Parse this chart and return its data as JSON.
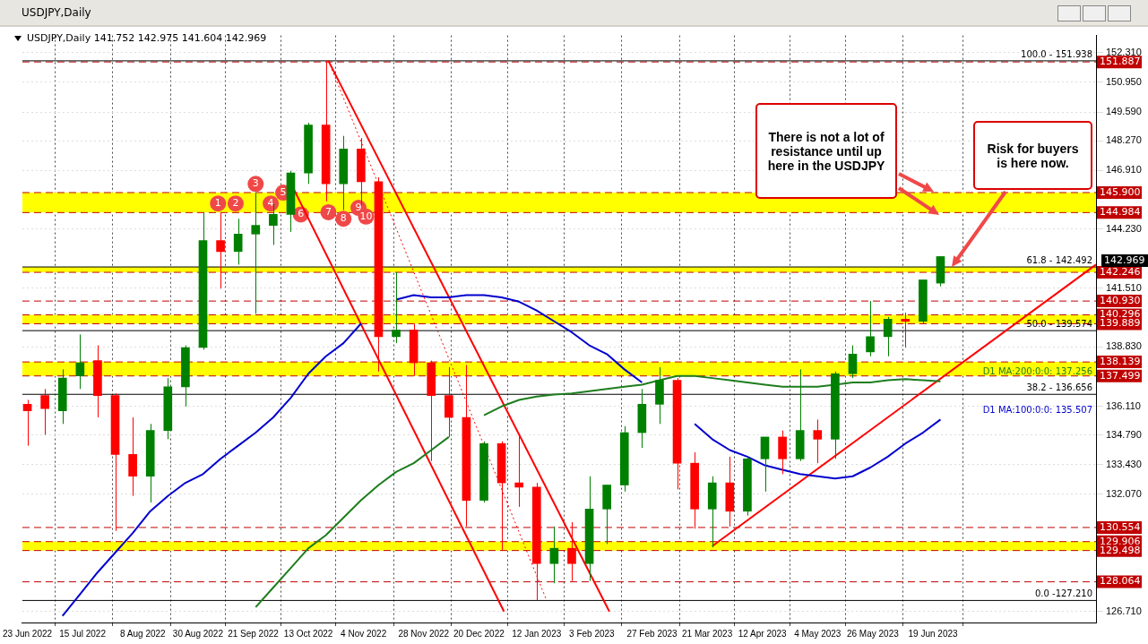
{
  "chart_data": {
    "type": "candlestick",
    "title": "USDJPY,Daily  141.752 142.975 141.604 142.969",
    "subtitle": "USDJPY,Daily",
    "x": [
      "2022-06-23",
      "2022-06-30",
      "2022-07-07",
      "2022-07-14",
      "2022-07-21",
      "2022-07-28",
      "2022-08-04",
      "2022-08-11",
      "2022-08-18",
      "2022-08-25",
      "2022-09-01",
      "2022-09-08",
      "2022-09-15",
      "2022-09-22",
      "2022-09-29",
      "2022-10-06",
      "2022-10-13",
      "2022-10-20",
      "2022-10-27",
      "2022-11-03",
      "2022-11-10",
      "2022-11-17",
      "2022-11-24",
      "2022-12-01",
      "2022-12-08",
      "2022-12-15",
      "2022-12-22",
      "2022-12-29",
      "2023-01-05",
      "2023-01-12",
      "2023-01-19",
      "2023-01-26",
      "2023-02-02",
      "2023-02-09",
      "2023-02-16",
      "2023-02-23",
      "2023-03-02",
      "2023-03-09",
      "2023-03-16",
      "2023-03-23",
      "2023-03-30",
      "2023-04-06",
      "2023-04-13",
      "2023-04-20",
      "2023-04-27",
      "2023-05-04",
      "2023-05-11",
      "2023-05-18",
      "2023-05-25",
      "2023-06-01",
      "2023-06-08",
      "2023-06-15",
      "2023-06-22"
    ],
    "ohlc": [
      [
        136.2,
        136.4,
        134.3,
        135.9
      ],
      [
        136.6,
        136.9,
        134.8,
        136.0
      ],
      [
        135.9,
        137.8,
        135.3,
        137.4
      ],
      [
        137.5,
        139.4,
        136.9,
        138.1
      ],
      [
        138.2,
        138.9,
        135.6,
        136.6
      ],
      [
        136.6,
        136.7,
        130.4,
        133.9
      ],
      [
        133.9,
        135.6,
        132.0,
        132.9
      ],
      [
        132.9,
        135.3,
        131.7,
        135.0
      ],
      [
        135.0,
        137.4,
        134.6,
        137.0
      ],
      [
        137.0,
        138.9,
        136.1,
        138.8
      ],
      [
        138.8,
        144.99,
        138.7,
        143.7
      ],
      [
        143.7,
        144.96,
        141.5,
        143.2
      ],
      [
        143.2,
        144.7,
        142.6,
        144.0
      ],
      [
        144.0,
        145.9,
        140.35,
        144.4
      ],
      [
        144.4,
        145.4,
        143.5,
        144.9
      ],
      [
        144.9,
        146.9,
        144.1,
        146.8
      ],
      [
        146.8,
        149.1,
        146.3,
        149.0
      ],
      [
        149.0,
        151.94,
        145.5,
        146.3
      ],
      [
        146.3,
        148.5,
        145.1,
        147.9
      ],
      [
        147.9,
        148.4,
        145.3,
        146.4
      ],
      [
        146.4,
        146.6,
        137.7,
        139.3
      ],
      [
        139.3,
        142.25,
        139.0,
        139.6
      ],
      [
        139.6,
        139.9,
        137.5,
        138.1
      ],
      [
        138.1,
        138.2,
        133.6,
        136.6
      ],
      [
        136.6,
        137.9,
        134.7,
        135.6
      ],
      [
        135.6,
        138.0,
        130.6,
        131.8
      ],
      [
        131.8,
        134.5,
        131.7,
        134.4
      ],
      [
        134.4,
        134.5,
        129.5,
        132.6
      ],
      [
        132.6,
        134.8,
        131.5,
        132.4
      ],
      [
        132.4,
        132.6,
        127.21,
        128.9
      ],
      [
        128.9,
        130.6,
        128.0,
        129.6
      ],
      [
        129.6,
        130.8,
        128.1,
        128.9
      ],
      [
        128.9,
        132.9,
        128.1,
        131.4
      ],
      [
        131.4,
        132.5,
        129.8,
        132.5
      ],
      [
        132.5,
        135.2,
        132.2,
        134.9
      ],
      [
        134.9,
        136.9,
        134.2,
        136.2
      ],
      [
        136.2,
        137.9,
        135.3,
        137.3
      ],
      [
        137.3,
        137.4,
        132.3,
        133.5
      ],
      [
        133.5,
        134.0,
        130.5,
        131.4
      ],
      [
        131.4,
        132.9,
        129.64,
        132.6
      ],
      [
        132.6,
        133.8,
        130.6,
        131.3
      ],
      [
        131.3,
        133.8,
        131.1,
        133.7
      ],
      [
        133.7,
        134.7,
        132.2,
        134.7
      ],
      [
        134.7,
        135.0,
        133.0,
        133.7
      ],
      [
        133.7,
        137.8,
        133.6,
        135.0
      ],
      [
        135.0,
        135.5,
        133.5,
        134.6
      ],
      [
        134.6,
        137.7,
        133.7,
        137.6
      ],
      [
        137.6,
        138.9,
        137.4,
        138.5
      ],
      [
        138.6,
        140.93,
        138.4,
        139.3
      ],
      [
        139.3,
        140.2,
        138.4,
        140.1
      ],
      [
        140.1,
        140.4,
        138.8,
        140.0
      ],
      [
        140.0,
        141.9,
        139.9,
        141.9
      ],
      [
        141.752,
        142.975,
        141.604,
        142.969
      ]
    ],
    "colors": [
      "#ff0000",
      "#ff0000",
      "#008000",
      "#008000",
      "#ff0000",
      "#ff0000",
      "#ff0000",
      "#008000",
      "#008000",
      "#008000",
      "#008000",
      "#ff0000",
      "#008000",
      "#008000",
      "#008000",
      "#008000",
      "#008000",
      "#ff0000",
      "#008000",
      "#ff0000",
      "#ff0000",
      "#008000",
      "#ff0000",
      "#ff0000",
      "#ff0000",
      "#ff0000",
      "#008000",
      "#ff0000",
      "#ff0000",
      "#ff0000",
      "#008000",
      "#ff0000",
      "#008000",
      "#008000",
      "#008000",
      "#008000",
      "#008000",
      "#ff0000",
      "#ff0000",
      "#008000",
      "#ff0000",
      "#008000",
      "#008000",
      "#ff0000",
      "#008000",
      "#ff0000",
      "#008000",
      "#008000",
      "#008000",
      "#008000",
      "#ff0000",
      "#008000",
      "#008000"
    ],
    "series": [
      {
        "type": "line",
        "name": "D1 MA:100:0:0: 135.507",
        "color": "#0000cd",
        "values": [
          null,
          null,
          126.5,
          127.5,
          128.5,
          129.4,
          130.3,
          131.3,
          132.0,
          132.6,
          133.0,
          133.7,
          134.3,
          134.9,
          135.6,
          136.5,
          137.6,
          138.4,
          139.0,
          139.9,
          null,
          141.0,
          141.2,
          141.1,
          141.1,
          141.2,
          141.2,
          141.1,
          140.9,
          140.5,
          140.0,
          139.5,
          138.9,
          138.5,
          137.8,
          137.2,
          null,
          null,
          135.3,
          134.6,
          134.1,
          133.8,
          133.4,
          133.2,
          133.0,
          132.9,
          132.8,
          132.9,
          133.3,
          133.8,
          134.4,
          134.9,
          135.5
        ]
      },
      {
        "type": "line",
        "name": "D1 MA:200:0:0: 137.256",
        "color": "#1e7d1e",
        "values": [
          null,
          null,
          null,
          null,
          null,
          null,
          null,
          null,
          null,
          null,
          null,
          null,
          null,
          126.9,
          127.8,
          128.7,
          129.6,
          130.2,
          131.0,
          131.8,
          132.5,
          133.1,
          133.5,
          134.1,
          134.7,
          null,
          135.7,
          136.1,
          136.4,
          136.55,
          136.65,
          136.7,
          136.8,
          136.9,
          137.0,
          137.1,
          137.3,
          137.5,
          137.5,
          137.4,
          137.3,
          137.2,
          137.1,
          137.0,
          137.0,
          137.0,
          137.1,
          137.2,
          137.2,
          137.3,
          137.35,
          137.3,
          137.25
        ]
      },
      {
        "type": "line",
        "color": "#ff0000",
        "x": [
          "2022-10-07",
          "2022-12-30"
        ],
        "values": [
          146.1,
          126.7
        ]
      },
      {
        "type": "line",
        "color": "#ff0000",
        "x": [
          "2022-10-21",
          "2023-02-10"
        ],
        "values": [
          151.94,
          126.7
        ]
      },
      {
        "type": "line",
        "color": "#ff0000",
        "x": [
          "2023-03-23",
          "2023-08-23"
        ],
        "values": [
          129.7,
          142.6
        ]
      },
      {
        "type": "line",
        "color": "#ff0000",
        "line_style": "dotted",
        "x": [
          "2022-10-21",
          "2023-01-16"
        ],
        "values": [
          151.94,
          127.21
        ]
      }
    ],
    "xlim": [
      "2022-06-21",
      "2023-08-23"
    ],
    "xticks": [
      {
        "value": "2022-06-23",
        "label": "23 Jun 2022"
      },
      {
        "value": "2022-07-15",
        "label": "15 Jul 2022"
      },
      {
        "value": "2022-08-08",
        "label": "8 Aug 2022"
      },
      {
        "value": "2022-08-30",
        "label": "30 Aug 2022"
      },
      {
        "value": "2022-09-21",
        "label": "21 Sep 2022"
      },
      {
        "value": "2022-10-13",
        "label": "13 Oct 2022"
      },
      {
        "value": "2022-11-04",
        "label": "4 Nov 2022"
      },
      {
        "value": "2022-11-28",
        "label": "28 Nov 2022"
      },
      {
        "value": "2022-12-20",
        "label": "20 Dec 2022"
      },
      {
        "value": "2023-01-12",
        "label": "12 Jan 2023"
      },
      {
        "value": "2023-02-03",
        "label": "3 Feb 2023"
      },
      {
        "value": "2023-02-27",
        "label": "27 Feb 2023"
      },
      {
        "value": "2023-03-21",
        "label": "21 Mar 2023"
      },
      {
        "value": "2023-04-12",
        "label": "12 Apr 2023"
      },
      {
        "value": "2023-05-04",
        "label": "4 May 2023"
      },
      {
        "value": "2023-05-26",
        "label": "26 May 2023"
      },
      {
        "value": "2023-06-19",
        "label": "19 Jun 2023"
      }
    ],
    "ylim": [
      126.2,
      153.1
    ],
    "yticks": [
      {
        "value": 152.31,
        "label": "152.310"
      },
      {
        "value": 150.95,
        "label": "150.950"
      },
      {
        "value": 149.59,
        "label": "149.590"
      },
      {
        "value": 148.27,
        "label": "148.270"
      },
      {
        "value": 146.91,
        "label": "146.910"
      },
      {
        "value": 144.23,
        "label": "144.230"
      },
      {
        "value": 141.51,
        "label": "141.510"
      },
      {
        "value": 138.83,
        "label": "138.830"
      },
      {
        "value": 136.11,
        "label": "136.110"
      },
      {
        "value": 134.79,
        "label": "134.790"
      },
      {
        "value": 133.43,
        "label": "133.430"
      },
      {
        "value": 132.07,
        "label": "132.070"
      },
      {
        "value": 126.71,
        "label": "126.710"
      }
    ],
    "grid": true,
    "legend": false,
    "bands": [
      {
        "axis": "y",
        "from": 144.984,
        "to": 145.9,
        "color": "#ffff00"
      },
      {
        "axis": "y",
        "from": 142.246,
        "to": 142.492,
        "color": "#ffff00"
      },
      {
        "axis": "y",
        "from": 139.889,
        "to": 140.296,
        "color": "#ffff00"
      },
      {
        "axis": "y",
        "from": 137.499,
        "to": 138.139,
        "color": "#ffff00"
      },
      {
        "axis": "y",
        "from": 129.498,
        "to": 129.906,
        "color": "#ffff00"
      }
    ],
    "ref_lines": [
      {
        "axis": "y",
        "value": 151.887,
        "label": "151.887",
        "color": "#c00000",
        "line_style": "dashed"
      },
      {
        "axis": "y",
        "value": 145.9,
        "label": "145.900",
        "color": "#c00000",
        "line_style": "dashed"
      },
      {
        "axis": "y",
        "value": 144.984,
        "label": "144.984",
        "color": "#c00000",
        "line_style": "dashed"
      },
      {
        "axis": "y",
        "value": 142.246,
        "label": "142.246",
        "color": "#c00000",
        "line_style": "dashed"
      },
      {
        "axis": "y",
        "value": 140.93,
        "label": "140.930",
        "color": "#c00000",
        "line_style": "dashed"
      },
      {
        "axis": "y",
        "value": 140.296,
        "label": "140.296",
        "color": "#c00000",
        "line_style": "dashed"
      },
      {
        "axis": "y",
        "value": 139.889,
        "label": "139.889",
        "color": "#c00000",
        "line_style": "dashed"
      },
      {
        "axis": "y",
        "value": 138.139,
        "label": "138.139",
        "color": "#c00000",
        "line_style": "dashed"
      },
      {
        "axis": "y",
        "value": 137.499,
        "label": "137.499",
        "color": "#c00000",
        "line_style": "dashed"
      },
      {
        "axis": "y",
        "value": 130.554,
        "label": "130.554",
        "color": "#c00000",
        "line_style": "dashed"
      },
      {
        "axis": "y",
        "value": 129.906,
        "label": "129.906",
        "color": "#c00000",
        "line_style": "dashed"
      },
      {
        "axis": "y",
        "value": 129.498,
        "label": "129.498",
        "color": "#c00000",
        "line_style": "dashed"
      },
      {
        "axis": "y",
        "value": 128.064,
        "label": "128.064",
        "color": "#c00000",
        "line_style": "dashed"
      },
      {
        "axis": "y",
        "value": 151.938,
        "color": "#000000",
        "line_style": "solid"
      },
      {
        "axis": "y",
        "value": 142.492,
        "color": "#000000",
        "line_style": "solid"
      },
      {
        "axis": "y",
        "value": 139.574,
        "color": "#000000",
        "line_style": "solid"
      },
      {
        "axis": "y",
        "value": 136.656,
        "color": "#000000",
        "line_style": "solid"
      },
      {
        "axis": "y",
        "value": 127.21,
        "color": "#000000",
        "line_style": "solid"
      }
    ],
    "annotations": [
      "There is not a lot of resistance until up here in the USDJPY",
      "Risk for buyers is here now.",
      "142.969",
      {
        "text": "100.0 - 151.938",
        "y": 151.938
      },
      {
        "text": "61.8 - 142.492",
        "y": 142.492
      },
      {
        "text": "50.0 - 139.574",
        "y": 139.574
      },
      {
        "text": "38.2 - 136.656",
        "y": 136.656
      },
      {
        "text": "0.0 -127.210",
        "y": 127.21
      },
      {
        "text": "1",
        "x": "2022-09-07",
        "y": 145.4
      },
      {
        "text": "2",
        "x": "2022-09-14",
        "y": 145.4
      },
      {
        "text": "3",
        "x": "2022-09-22",
        "y": 146.3
      },
      {
        "text": "4",
        "x": "2022-09-28",
        "y": 145.4
      },
      {
        "text": "5",
        "x": "2022-10-03",
        "y": 145.9
      },
      {
        "text": "6",
        "x": "2022-10-10",
        "y": 144.9
      },
      {
        "text": "7",
        "x": "2022-10-21",
        "y": 145.0
      },
      {
        "text": "8",
        "x": "2022-10-27",
        "y": 144.7
      },
      {
        "text": "9",
        "x": "2022-11-02",
        "y": 145.2
      },
      {
        "text": "10",
        "x": "2022-11-05",
        "y": 144.8
      }
    ]
  }
}
